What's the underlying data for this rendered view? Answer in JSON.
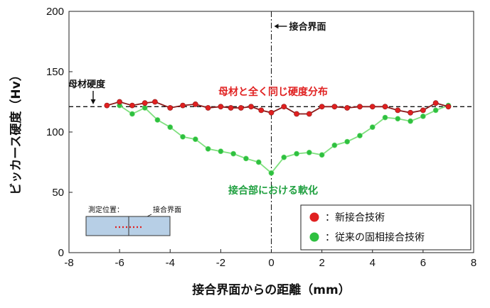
{
  "chart_data": {
    "type": "line",
    "xlabel": "接合界面からの距離（mm）",
    "ylabel": "ビッカース硬度（Hv）",
    "xlim": [
      -8,
      8
    ],
    "ylim": [
      0,
      200
    ],
    "xticks": [
      "-8",
      "-6",
      "-4",
      "-2",
      "0",
      "2",
      "4",
      "6",
      "8"
    ],
    "yticks": [
      "0",
      "50",
      "100",
      "150",
      "200"
    ],
    "grid": false,
    "legend_position": "bottom-right",
    "base_hardness": 121,
    "series": [
      {
        "name": "新接合技術",
        "color": "#e02020",
        "line_color": "#8b1a1a",
        "x": [
          -6.5,
          -6.0,
          -5.5,
          -5.0,
          -4.6,
          -4.0,
          -3.5,
          -3.0,
          -2.5,
          -2.0,
          -1.6,
          -1.2,
          -0.8,
          -0.4,
          0.0,
          0.5,
          1.0,
          1.5,
          2.0,
          2.5,
          3.0,
          3.5,
          4.0,
          4.5,
          5.0,
          5.5,
          6.0,
          6.5,
          7.0
        ],
        "values": [
          122,
          125,
          122,
          124,
          125,
          120,
          122,
          123,
          120,
          121,
          120,
          120,
          121,
          118,
          116,
          121,
          115,
          115,
          121,
          121,
          120,
          121,
          121,
          121,
          118,
          116,
          118,
          124,
          121
        ]
      },
      {
        "name": "従来の固相接合技術",
        "color": "#2ec040",
        "line_color": "#7ee07e",
        "x": [
          -6.0,
          -5.5,
          -5.0,
          -4.5,
          -4.0,
          -3.5,
          -3.0,
          -2.5,
          -2.0,
          -1.5,
          -1.0,
          -0.5,
          0.0,
          0.5,
          1.0,
          1.5,
          2.0,
          2.5,
          3.0,
          3.5,
          4.0,
          4.5,
          5.0,
          5.5,
          6.0,
          6.5,
          7.0
        ],
        "values": [
          122,
          115,
          120,
          110,
          104,
          96,
          94,
          86,
          84,
          82,
          78,
          75,
          66,
          79,
          82,
          83,
          81,
          89,
          92,
          97,
          104,
          112,
          111,
          109,
          113,
          118,
          122
        ]
      }
    ],
    "annotations": {
      "interface": "接合界面",
      "base_material": "母材硬度",
      "red_note": "母材と全く同じ硬度分布",
      "green_note": "接合部における軟化",
      "inset_position": "測定位置：",
      "inset_interface": "接合界面"
    },
    "annotation_colors": {
      "red_note": "#e02020",
      "green_note": "#20a040"
    }
  }
}
